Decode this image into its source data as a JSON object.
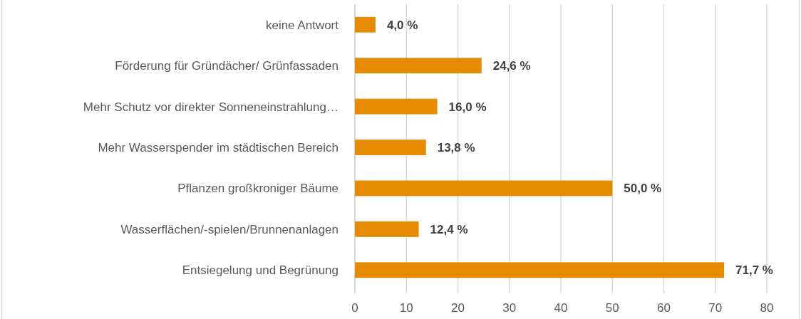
{
  "chart_data": {
    "type": "bar",
    "orientation": "horizontal",
    "categories": [
      "keine Antwort",
      "Förderung für Gründächer/ Grünfassaden",
      "Mehr Schutz vor direkter Sonneneinstrahlung…",
      "Mehr Wasserspender im städtischen Bereich",
      "Pflanzen großkroniger Bäume",
      "Wasserflächen/-spielen/Brunnenanlagen",
      "Entsiegelung und Begrünung"
    ],
    "values": [
      4.0,
      24.6,
      16.0,
      13.8,
      50.0,
      12.4,
      71.7
    ],
    "color": "#e68a00",
    "value_labels": [
      "4,0 %",
      "24,6 %",
      "16,0 %",
      "13,8 %",
      "50,0 %",
      "12,4 %",
      "71,7 %"
    ],
    "xlim": [
      0,
      80
    ],
    "xticks": [
      0,
      10,
      20,
      30,
      40,
      50,
      60,
      70,
      80
    ],
    "grid": "x"
  }
}
